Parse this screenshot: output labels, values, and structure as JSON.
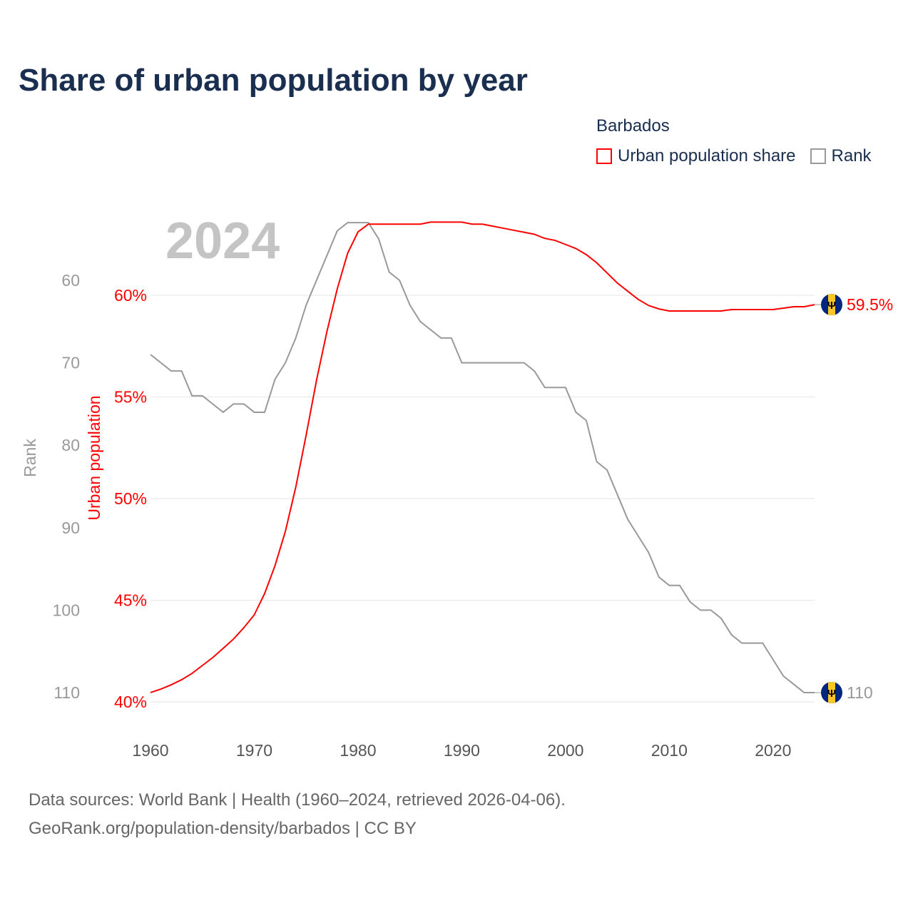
{
  "title": "Share of urban population by year",
  "legend": {
    "title": "Barbados",
    "items": [
      {
        "label": "Urban population share",
        "color": "#ff0000"
      },
      {
        "label": "Rank",
        "color": "#999999"
      }
    ]
  },
  "footer": {
    "line1": "Data sources: World Bank | Health (1960–2024, retrieved 2026-04-06).",
    "line2": "GeoRank.org/population-density/barbados | CC BY"
  },
  "chart_data": {
    "type": "line",
    "title": "Share of urban population by year",
    "year_watermark": "2024",
    "xlabel": "",
    "ylabel_left_outer": "Rank",
    "ylabel_left_inner": "Urban population",
    "x_ticks": [
      "1960",
      "1970",
      "1980",
      "1990",
      "2000",
      "2010",
      "2020"
    ],
    "urban_ticks": [
      "40%",
      "45%",
      "50%",
      "55%",
      "60%"
    ],
    "rank_ticks": [
      "60",
      "70",
      "80",
      "90",
      "100",
      "110"
    ],
    "xlim": [
      1960,
      2024
    ],
    "urban_ylim": [
      40,
      60
    ],
    "rank_ylim": [
      60,
      110
    ],
    "end_labels": {
      "urban": "59.5%",
      "rank": "110"
    },
    "x": [
      1960,
      1961,
      1962,
      1963,
      1964,
      1965,
      1966,
      1967,
      1968,
      1969,
      1970,
      1971,
      1972,
      1973,
      1974,
      1975,
      1976,
      1977,
      1978,
      1979,
      1980,
      1981,
      1982,
      1983,
      1984,
      1985,
      1986,
      1987,
      1988,
      1989,
      1990,
      1991,
      1992,
      1993,
      1994,
      1995,
      1996,
      1997,
      1998,
      1999,
      2000,
      2001,
      2002,
      2003,
      2004,
      2005,
      2006,
      2007,
      2008,
      2009,
      2010,
      2011,
      2012,
      2013,
      2014,
      2015,
      2016,
      2017,
      2018,
      2019,
      2020,
      2021,
      2022,
      2023,
      2024
    ],
    "series": [
      {
        "name": "Urban population share",
        "color": "#ff0000",
        "values": [
          40.46,
          40.63,
          40.84,
          41.09,
          41.4,
          41.79,
          42.18,
          42.63,
          43.09,
          43.65,
          44.28,
          45.33,
          46.7,
          48.39,
          50.56,
          53.12,
          55.82,
          58.21,
          60.32,
          62.07,
          63.12,
          63.5,
          63.5,
          63.5,
          63.5,
          63.5,
          63.5,
          63.6,
          63.6,
          63.6,
          63.6,
          63.5,
          63.5,
          63.4,
          63.3,
          63.2,
          63.1,
          63.0,
          62.8,
          62.7,
          62.5,
          62.3,
          62.0,
          61.6,
          61.1,
          60.6,
          60.2,
          59.8,
          59.5,
          59.33,
          59.23,
          59.23,
          59.23,
          59.23,
          59.23,
          59.23,
          59.3,
          59.3,
          59.3,
          59.3,
          59.3,
          59.37,
          59.44,
          59.44,
          59.54
        ]
      },
      {
        "name": "Rank",
        "color": "#999999",
        "values": [
          69,
          70,
          71,
          71,
          74,
          74,
          75,
          76,
          75,
          75,
          76,
          76,
          72,
          70,
          67,
          63,
          60,
          57,
          54,
          53,
          53,
          53,
          55,
          59,
          60,
          63,
          65,
          66,
          67,
          67,
          70,
          70,
          70,
          70,
          70,
          70,
          70,
          71,
          73,
          73,
          73,
          76,
          77,
          82,
          83,
          86,
          89,
          91,
          93,
          96,
          97,
          97,
          99,
          100,
          100,
          101,
          103,
          104,
          104,
          104,
          106,
          108,
          109,
          110,
          110
        ]
      }
    ]
  }
}
